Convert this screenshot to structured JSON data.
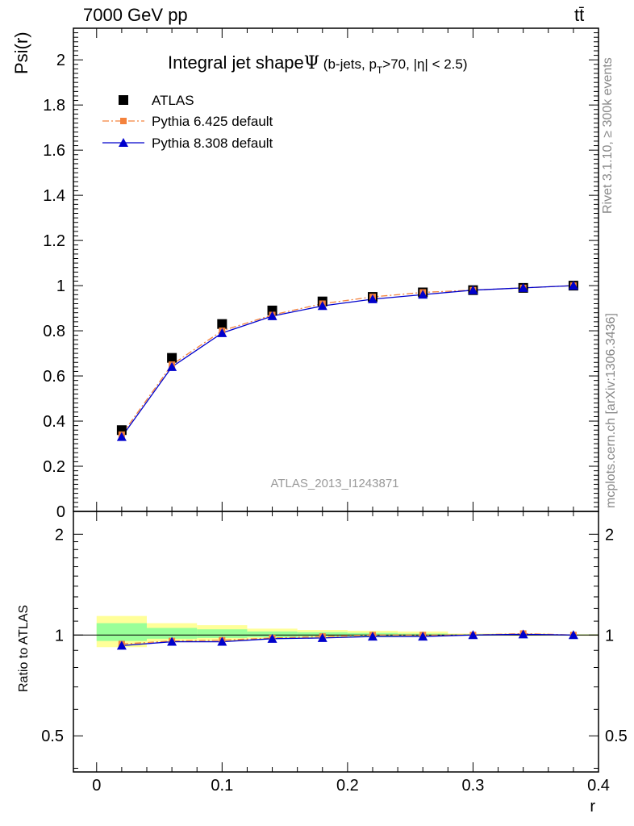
{
  "header": {
    "energy_label": "7000 GeV pp",
    "process_label": "tt̄"
  },
  "sidebar": {
    "rivet_label": "Rivet 3.1.10, ≥ 300k events",
    "source_label": "mcplots.cern.ch [arXiv:1306.3436]"
  },
  "chart_data": [
    {
      "type": "line",
      "panel": "main",
      "title": "Integral jet shapeΨ (b-jets, p_T>70, |η| < 2.5)",
      "title_main": "Integral jet shape",
      "title_psi": "Ψ",
      "title_cuts_1": " (b-jets, p",
      "title_cuts_sub": "T",
      "title_cuts_2": ">70, |η| < 2.5)",
      "ylabel": "Psi(r)",
      "xlabel": "",
      "ylim": [
        0,
        2.14
      ],
      "xlim": [
        -0.0185,
        0.4
      ],
      "y_ticks": [
        0,
        0.2,
        0.4,
        0.6,
        0.8,
        1,
        1.2,
        1.4,
        1.6,
        1.8,
        2
      ],
      "y_tick_labels": [
        "0",
        "0.2",
        "0.4",
        "0.6",
        "0.8",
        "1",
        "1.2",
        "1.4",
        "1.6",
        "1.8",
        "2"
      ],
      "watermark": "ATLAS_2013_I1243871",
      "legend_position": "top-left",
      "x": [
        0.02,
        0.06,
        0.1,
        0.14,
        0.18,
        0.22,
        0.26,
        0.3,
        0.34,
        0.38
      ],
      "series": [
        {
          "name": "ATLAS",
          "style": "data",
          "color": "#000000",
          "values": [
            0.36,
            0.68,
            0.83,
            0.89,
            0.93,
            0.95,
            0.97,
            0.98,
            0.99,
            1.0
          ]
        },
        {
          "name": "Pythia 6.425 default",
          "style": "dashdot",
          "color": "#f4823c",
          "values": [
            0.34,
            0.65,
            0.8,
            0.87,
            0.92,
            0.95,
            0.97,
            0.98,
            0.99,
            1.0
          ]
        },
        {
          "name": "Pythia 8.308 default",
          "style": "solid",
          "color": "#0000cc",
          "values": [
            0.33,
            0.64,
            0.79,
            0.865,
            0.91,
            0.94,
            0.96,
            0.98,
            0.99,
            1.0
          ]
        }
      ]
    },
    {
      "type": "line",
      "panel": "ratio",
      "ylabel": "Ratio to ATLAS",
      "xlabel": "r",
      "ylim": [
        0.39,
        2.34
      ],
      "xlim": [
        -0.0185,
        0.4
      ],
      "y_ticks": [
        0.5,
        1,
        2
      ],
      "y_tick_labels": [
        "0.5",
        "1",
        "2"
      ],
      "x_ticks": [
        0,
        0.1,
        0.2,
        0.3,
        0.4
      ],
      "x_tick_labels": [
        "0",
        "0.1",
        "0.2",
        "0.3",
        "0.4"
      ],
      "x": [
        0.02,
        0.06,
        0.1,
        0.14,
        0.18,
        0.22,
        0.26,
        0.3,
        0.34,
        0.38
      ],
      "series": [
        {
          "name": "Pythia 6.425 default",
          "color": "#f4823c",
          "values": [
            0.94,
            0.96,
            0.965,
            0.98,
            0.99,
            1.0,
            1.0,
            1.0,
            1.01,
            1.0
          ]
        },
        {
          "name": "Pythia 8.308 default",
          "color": "#0000cc",
          "values": [
            0.93,
            0.955,
            0.955,
            0.975,
            0.98,
            0.99,
            0.99,
            1.0,
            1.005,
            1.0
          ]
        }
      ],
      "uncertainty_bands": {
        "edges": [
          0,
          0.04,
          0.08,
          0.12,
          0.16,
          0.2,
          0.24,
          0.28,
          0.32,
          0.36,
          0.4
        ],
        "yellow_low": [
          0.92,
          0.955,
          0.96,
          0.975,
          0.98,
          0.985,
          0.99,
          0.995,
          0.995,
          0.995
        ],
        "yellow_high": [
          1.14,
          1.085,
          1.07,
          1.045,
          1.035,
          1.03,
          1.025,
          1.01,
          1.01,
          1.005
        ],
        "green_low": [
          0.96,
          0.975,
          0.98,
          0.985,
          0.99,
          0.99,
          0.995,
          0.997,
          0.998,
          0.998
        ],
        "green_high": [
          1.085,
          1.05,
          1.04,
          1.025,
          1.02,
          1.015,
          1.01,
          1.005,
          1.005,
          1.003
        ],
        "yellow_color": "#ffff99",
        "green_color": "#99ff99"
      }
    }
  ]
}
